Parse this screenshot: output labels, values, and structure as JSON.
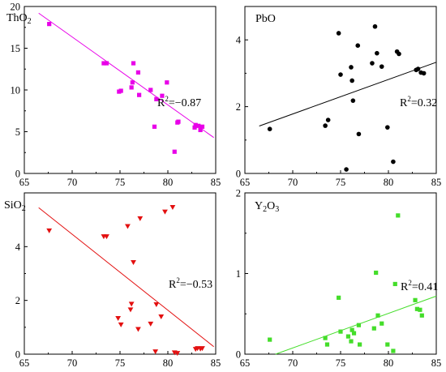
{
  "figure": {
    "x_ticks": [
      "65",
      "70",
      "75",
      "80",
      "85"
    ]
  },
  "chart_data": [
    {
      "type": "scatter",
      "title": "ThO2",
      "title_main": "ThO",
      "title_sub": "2",
      "r2_label": "R",
      "r2_sup": "2",
      "r2_value": "=−0.87",
      "color": "#e800e8",
      "marker": "square",
      "xlim": [
        65,
        85
      ],
      "ylim": [
        0,
        20
      ],
      "y_ticks": [
        0,
        5,
        10,
        15,
        20
      ],
      "grid": false,
      "fit_line": {
        "x": [
          66.5,
          84.8
        ],
        "y": [
          19.2,
          4.3
        ]
      },
      "points": [
        {
          "x": 67.6,
          "y": 17.9
        },
        {
          "x": 73.3,
          "y": 13.2
        },
        {
          "x": 73.6,
          "y": 13.2
        },
        {
          "x": 74.9,
          "y": 9.8
        },
        {
          "x": 75.1,
          "y": 9.9
        },
        {
          "x": 76.2,
          "y": 10.3
        },
        {
          "x": 76.3,
          "y": 10.9
        },
        {
          "x": 76.4,
          "y": 13.2
        },
        {
          "x": 76.9,
          "y": 12.1
        },
        {
          "x": 77.0,
          "y": 9.4
        },
        {
          "x": 78.2,
          "y": 10.0
        },
        {
          "x": 78.6,
          "y": 5.6
        },
        {
          "x": 78.8,
          "y": 8.9
        },
        {
          "x": 79.4,
          "y": 9.3
        },
        {
          "x": 79.9,
          "y": 10.9
        },
        {
          "x": 80.7,
          "y": 2.6
        },
        {
          "x": 81.0,
          "y": 6.1
        },
        {
          "x": 81.1,
          "y": 6.2
        },
        {
          "x": 82.8,
          "y": 5.5
        },
        {
          "x": 82.9,
          "y": 5.8
        },
        {
          "x": 83.2,
          "y": 5.7
        },
        {
          "x": 83.4,
          "y": 5.2
        },
        {
          "x": 83.6,
          "y": 5.6
        }
      ]
    },
    {
      "type": "scatter",
      "title": "PbO",
      "title_main": "PbO",
      "title_sub": "",
      "r2_label": "R",
      "r2_sup": "2",
      "r2_value": "=0.32",
      "color": "#000000",
      "marker": "circle",
      "xlim": [
        65,
        85
      ],
      "ylim": [
        0,
        5
      ],
      "y_ticks": [
        0,
        2,
        4
      ],
      "grid": false,
      "fit_line": {
        "x": [
          66.5,
          85.0
        ],
        "y": [
          1.42,
          3.33
        ]
      },
      "points": [
        {
          "x": 67.6,
          "y": 1.33
        },
        {
          "x": 73.4,
          "y": 1.43
        },
        {
          "x": 73.7,
          "y": 1.6
        },
        {
          "x": 74.8,
          "y": 4.2
        },
        {
          "x": 75.0,
          "y": 2.96
        },
        {
          "x": 75.6,
          "y": 0.12
        },
        {
          "x": 76.1,
          "y": 3.18
        },
        {
          "x": 76.2,
          "y": 2.78
        },
        {
          "x": 76.3,
          "y": 2.18
        },
        {
          "x": 76.8,
          "y": 3.83
        },
        {
          "x": 76.9,
          "y": 1.18
        },
        {
          "x": 78.3,
          "y": 3.3
        },
        {
          "x": 78.6,
          "y": 4.4
        },
        {
          "x": 78.8,
          "y": 3.6
        },
        {
          "x": 79.3,
          "y": 3.2
        },
        {
          "x": 79.9,
          "y": 1.38
        },
        {
          "x": 80.5,
          "y": 0.35
        },
        {
          "x": 80.9,
          "y": 3.65
        },
        {
          "x": 81.1,
          "y": 3.58
        },
        {
          "x": 82.9,
          "y": 3.1
        },
        {
          "x": 83.1,
          "y": 3.13
        },
        {
          "x": 83.4,
          "y": 3.02
        },
        {
          "x": 83.7,
          "y": 3.0
        }
      ]
    },
    {
      "type": "scatter",
      "title": "SiO2",
      "title_main": "SiO",
      "title_sub": "2",
      "r2_label": "R",
      "r2_sup": "2",
      "r2_value": "=−0.53",
      "color": "#e31010",
      "marker": "triangle-down",
      "xlim": [
        65,
        85
      ],
      "ylim": [
        0,
        6
      ],
      "y_ticks": [
        0,
        2,
        4
      ],
      "grid": false,
      "fit_line": {
        "x": [
          66.5,
          84.8
        ],
        "y": [
          5.45,
          0.28
        ]
      },
      "points": [
        {
          "x": 67.6,
          "y": 4.6
        },
        {
          "x": 73.3,
          "y": 4.38
        },
        {
          "x": 73.6,
          "y": 4.38
        },
        {
          "x": 74.8,
          "y": 1.34
        },
        {
          "x": 75.1,
          "y": 1.1
        },
        {
          "x": 75.8,
          "y": 4.76
        },
        {
          "x": 76.1,
          "y": 1.66
        },
        {
          "x": 76.2,
          "y": 1.87
        },
        {
          "x": 76.4,
          "y": 3.42
        },
        {
          "x": 76.9,
          "y": 0.93
        },
        {
          "x": 77.1,
          "y": 5.05
        },
        {
          "x": 78.2,
          "y": 1.13
        },
        {
          "x": 78.7,
          "y": 0.1
        },
        {
          "x": 78.8,
          "y": 1.85
        },
        {
          "x": 79.3,
          "y": 1.4
        },
        {
          "x": 79.7,
          "y": 5.3
        },
        {
          "x": 80.5,
          "y": 5.47
        },
        {
          "x": 80.7,
          "y": 0.06
        },
        {
          "x": 81.0,
          "y": 0.04
        },
        {
          "x": 82.9,
          "y": 0.19
        },
        {
          "x": 83.1,
          "y": 0.22
        },
        {
          "x": 83.4,
          "y": 0.2
        },
        {
          "x": 83.6,
          "y": 0.22
        }
      ]
    },
    {
      "type": "scatter",
      "title": "Y2O3",
      "title_main": "Y",
      "title_sub": "2",
      "title_tail": "O",
      "title_sub2": "3",
      "r2_label": "R",
      "r2_sup": "2",
      "r2_value": "=0.41",
      "color": "#44dd2a",
      "marker": "square",
      "xlim": [
        65,
        85
      ],
      "ylim": [
        0,
        2
      ],
      "y_ticks": [
        0,
        1,
        2
      ],
      "grid": false,
      "fit_line": {
        "x": [
          68.2,
          85.0
        ],
        "y": [
          0.0,
          0.72
        ]
      },
      "points": [
        {
          "x": 67.6,
          "y": 0.18
        },
        {
          "x": 73.4,
          "y": 0.2
        },
        {
          "x": 73.6,
          "y": 0.12
        },
        {
          "x": 74.8,
          "y": 0.7
        },
        {
          "x": 75.0,
          "y": 0.28
        },
        {
          "x": 75.8,
          "y": 0.22
        },
        {
          "x": 76.1,
          "y": 0.16
        },
        {
          "x": 76.2,
          "y": 0.3
        },
        {
          "x": 76.4,
          "y": 0.26
        },
        {
          "x": 76.9,
          "y": 0.36
        },
        {
          "x": 77.0,
          "y": 0.12
        },
        {
          "x": 78.5,
          "y": 0.32
        },
        {
          "x": 78.7,
          "y": 1.01
        },
        {
          "x": 78.9,
          "y": 0.48
        },
        {
          "x": 79.3,
          "y": 0.38
        },
        {
          "x": 79.9,
          "y": 0.12
        },
        {
          "x": 80.5,
          "y": 0.04
        },
        {
          "x": 80.7,
          "y": 0.87
        },
        {
          "x": 81.0,
          "y": 1.72
        },
        {
          "x": 82.8,
          "y": 0.67
        },
        {
          "x": 83.0,
          "y": 0.56
        },
        {
          "x": 83.3,
          "y": 0.55
        },
        {
          "x": 83.5,
          "y": 0.48
        }
      ]
    }
  ]
}
